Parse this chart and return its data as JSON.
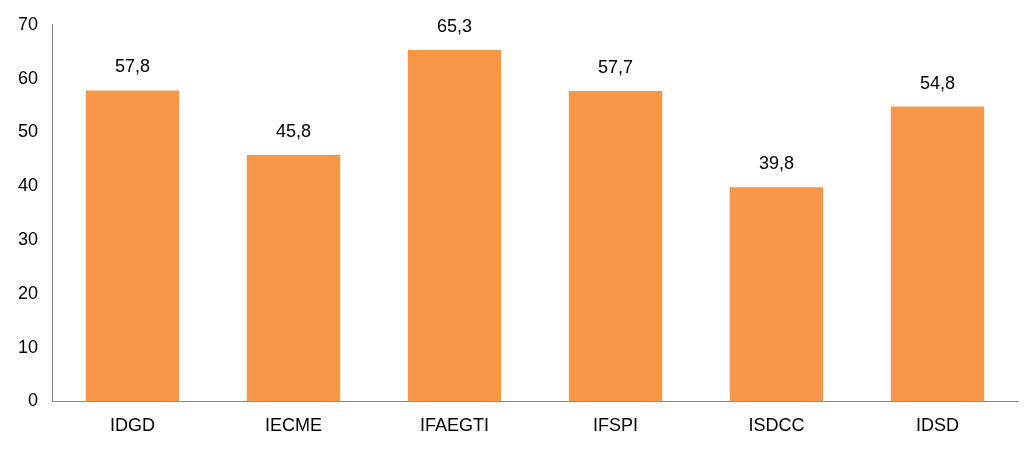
{
  "chart_data": {
    "type": "bar",
    "categories": [
      "IDGD",
      "IECME",
      "IFAEGTI",
      "IFSPI",
      "ISDCC",
      "IDSD"
    ],
    "values": [
      57.8,
      45.8,
      65.3,
      57.7,
      39.8,
      54.8
    ],
    "value_labels": [
      "57,8",
      "45,8",
      "65,3",
      "57,7",
      "39,8",
      "54,8"
    ],
    "color": "#f79646",
    "ylim": [
      0,
      70
    ],
    "yticks": [
      0,
      10,
      20,
      30,
      40,
      50,
      60,
      70
    ],
    "grid": false,
    "legend": false
  }
}
